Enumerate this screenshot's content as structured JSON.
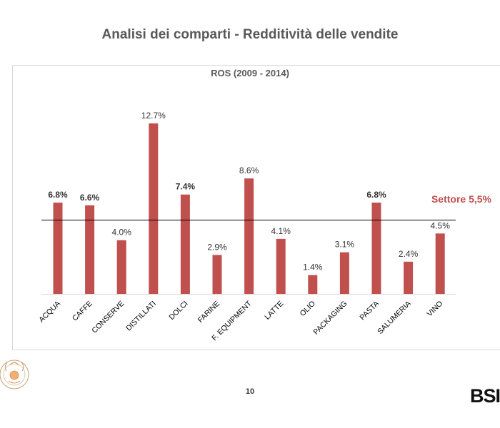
{
  "slide": {
    "title": "Analisi dei comparti - Redditività delle vendite",
    "page_number": "10",
    "brand_logo": "BSI"
  },
  "colors": {
    "bar": "#c0504d",
    "baseline": "#000000",
    "sector_label": "#c0504d"
  },
  "chart_data": {
    "type": "bar",
    "title": "ROS (2009 - 2014)",
    "xlabel": "",
    "ylabel": "",
    "categories": [
      "ACQUA",
      "CAFFE",
      "CONSERVE",
      "DISTILLATI",
      "DOLCI",
      "FARINE",
      "F. EQUIPMENT",
      "LATTE",
      "OLIO",
      "PACKAGING",
      "PASTA",
      "SALUMERIA",
      "VINO"
    ],
    "values": [
      6.8,
      6.6,
      4.0,
      12.7,
      7.4,
      2.9,
      8.6,
      4.1,
      1.4,
      3.1,
      6.8,
      2.4,
      4.5
    ],
    "data_labels": [
      "6.8%",
      "6.6%",
      "4.0%",
      "12.7%",
      "7.4%",
      "2.9%",
      "8.6%",
      "4.1%",
      "1.4%",
      "3.1%",
      "6.8%",
      "2.4%",
      "4.5%"
    ],
    "bold_labels": [
      true,
      true,
      false,
      false,
      true,
      false,
      false,
      false,
      false,
      false,
      true,
      false,
      false
    ],
    "reference_line": {
      "value": 5.5,
      "label": "Settore 5,5%"
    },
    "ylim": [
      0,
      12.7
    ],
    "grid": false,
    "legend": "none"
  }
}
